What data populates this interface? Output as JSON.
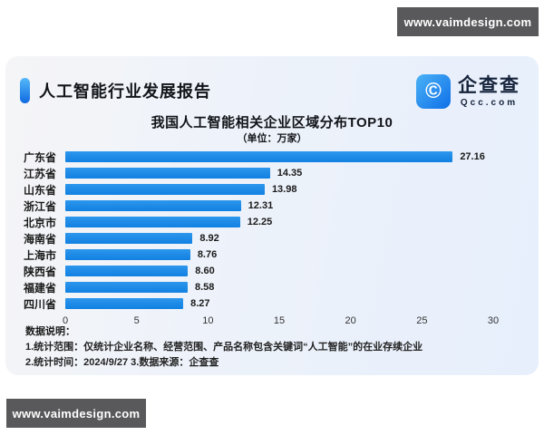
{
  "watermarks": {
    "top": "www.vaimdesign.com",
    "bottom": "www.vaimdesign.com"
  },
  "report": {
    "title": "人工智能行业发展报告"
  },
  "logo": {
    "name": "企查查",
    "domain": "Qcc.com",
    "icon_glyph": "©"
  },
  "chart_data": {
    "type": "bar",
    "orientation": "horizontal",
    "title": "我国人工智能相关企业区域分布TOP10",
    "subtitle": "（单位：万家）",
    "categories": [
      "广东省",
      "江苏省",
      "山东省",
      "浙江省",
      "北京市",
      "海南省",
      "上海市",
      "陕西省",
      "福建省",
      "四川省"
    ],
    "values": [
      27.16,
      14.35,
      13.98,
      12.31,
      12.25,
      8.92,
      8.76,
      8.6,
      8.58,
      8.27
    ],
    "xlim": [
      0,
      30
    ],
    "ticks": [
      0,
      5,
      10,
      15,
      20,
      25,
      30
    ],
    "grid": false,
    "legend": false,
    "bar_color": "#1587e5",
    "value_labels": true
  },
  "notes": {
    "heading": "数据说明：",
    "lines": [
      "1.统计范围：仅统计企业名称、经营范围、产品名称包含关键词“人工智能”的在业存续企业",
      "2.统计时间：2024/9/27      3.数据来源：企查查"
    ]
  },
  "colors": {
    "bar": "#1587e5",
    "accent_gradient_top": "#55b8f9",
    "accent_gradient_bottom": "#0f6ae0",
    "watermark_bg": "#59595b",
    "card_bg_left": "#f5f5f7",
    "card_bg_right": "#e7effc"
  }
}
